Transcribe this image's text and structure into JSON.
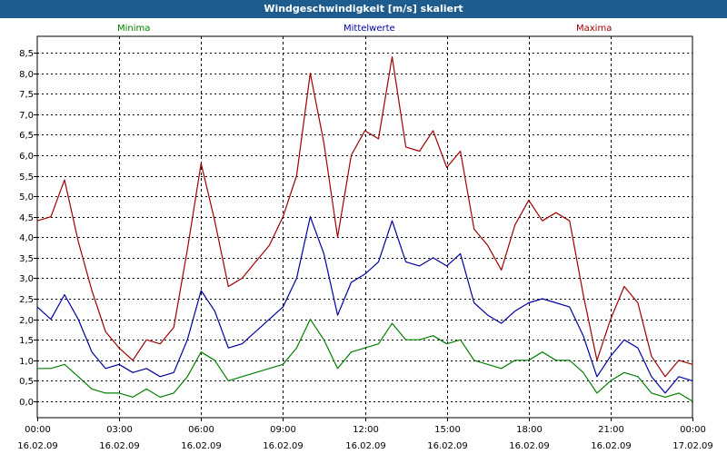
{
  "window": {
    "title": "Windgeschwindigkeit [m/s] skaliert"
  },
  "colors": {
    "titlebar": "#1d5c8c",
    "minima": "#008000",
    "mittel": "#0000a0",
    "maxima": "#a00000",
    "grid": "#000000"
  },
  "chart_data": {
    "type": "line",
    "title": "Windgeschwindigkeit [m/s] skaliert",
    "ylim": [
      -0.4,
      8.9
    ],
    "yticks": [
      0.0,
      0.5,
      1.0,
      1.5,
      2.0,
      2.5,
      3.0,
      3.5,
      4.0,
      4.5,
      5.0,
      5.5,
      6.0,
      6.5,
      7.0,
      7.5,
      8.0,
      8.5
    ],
    "ytick_labels": [
      "0,0",
      "0,5",
      "1,0",
      "1,5",
      "2,0",
      "2,5",
      "3,0",
      "3,5",
      "4,0",
      "4,5",
      "5,0",
      "5,5",
      "6,0",
      "6,5",
      "7,0",
      "7,5",
      "8,0",
      "8,5"
    ],
    "xlim": [
      0,
      24
    ],
    "xticks": [
      {
        "hour": 0,
        "time": "00:00",
        "date": "16.02.09"
      },
      {
        "hour": 3,
        "time": "03:00",
        "date": "16.02.09"
      },
      {
        "hour": 6,
        "time": "06:00",
        "date": "16.02.09"
      },
      {
        "hour": 9,
        "time": "09:00",
        "date": "16.02.09"
      },
      {
        "hour": 12,
        "time": "12:00",
        "date": "16.02.09"
      },
      {
        "hour": 15,
        "time": "15:00",
        "date": "16.02.09"
      },
      {
        "hour": 18,
        "time": "18:00",
        "date": "16.02.09"
      },
      {
        "hour": 21,
        "time": "21:00",
        "date": "16.02.09"
      },
      {
        "hour": 24,
        "time": "00:00",
        "date": "17.02.09"
      }
    ],
    "legend": [
      "Minima",
      "Mittelwerte",
      "Maxima"
    ],
    "x": [
      0,
      0.5,
      1,
      1.5,
      2,
      2.5,
      3,
      3.5,
      4,
      4.5,
      5,
      5.5,
      6,
      6.5,
      7,
      7.5,
      8,
      8.5,
      9,
      9.5,
      10,
      10.5,
      11,
      11.5,
      12,
      12.5,
      13,
      13.5,
      14,
      14.5,
      15,
      15.5,
      16,
      16.5,
      17,
      17.5,
      18,
      18.5,
      19,
      19.5,
      20,
      20.5,
      21,
      21.5,
      22,
      22.5,
      23,
      23.5,
      24
    ],
    "series": [
      {
        "name": "Maxima",
        "values": [
          4.4,
          4.5,
          5.4,
          3.9,
          2.7,
          1.7,
          1.3,
          1.0,
          1.5,
          1.4,
          1.8,
          3.7,
          5.8,
          4.4,
          2.8,
          3.0,
          3.4,
          3.8,
          4.5,
          5.5,
          8.0,
          6.3,
          4.0,
          6.0,
          6.6,
          6.4,
          8.4,
          6.2,
          6.1,
          6.6,
          5.7,
          6.1,
          4.2,
          3.8,
          3.2,
          4.3,
          4.9,
          4.4,
          4.6,
          4.4,
          2.6,
          1.0,
          2.0,
          2.8,
          2.4,
          1.1,
          0.6,
          1.0,
          0.9
        ]
      },
      {
        "name": "Mittelwerte",
        "values": [
          2.3,
          2.0,
          2.6,
          2.0,
          1.2,
          0.8,
          0.9,
          0.7,
          0.8,
          0.6,
          0.7,
          1.5,
          2.7,
          2.2,
          1.3,
          1.4,
          1.7,
          2.0,
          2.3,
          3.0,
          4.5,
          3.6,
          2.1,
          2.9,
          3.1,
          3.4,
          4.4,
          3.4,
          3.3,
          3.5,
          3.3,
          3.6,
          2.4,
          2.1,
          1.9,
          2.2,
          2.4,
          2.5,
          2.4,
          2.3,
          1.6,
          0.6,
          1.1,
          1.5,
          1.3,
          0.6,
          0.2,
          0.6,
          0.5
        ]
      },
      {
        "name": "Minima",
        "values": [
          0.8,
          0.8,
          0.9,
          0.6,
          0.3,
          0.2,
          0.2,
          0.1,
          0.3,
          0.1,
          0.2,
          0.6,
          1.2,
          1.0,
          0.5,
          0.6,
          0.7,
          0.8,
          0.9,
          1.3,
          2.0,
          1.5,
          0.8,
          1.2,
          1.3,
          1.4,
          1.9,
          1.5,
          1.5,
          1.6,
          1.4,
          1.5,
          1.0,
          0.9,
          0.8,
          1.0,
          1.0,
          1.2,
          1.0,
          1.0,
          0.7,
          0.2,
          0.5,
          0.7,
          0.6,
          0.2,
          0.1,
          0.2,
          0.0
        ]
      }
    ]
  }
}
